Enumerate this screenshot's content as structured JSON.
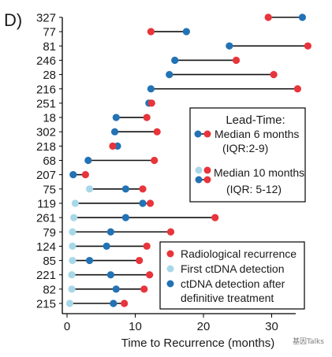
{
  "panel_label": "D)",
  "watermark": "基因Talks",
  "colors": {
    "radiological": "#e8343b",
    "first_ctdna": "#a8d8e8",
    "ctdna_after_treatment": "#2272b5",
    "segment": "#111111"
  },
  "lead_time_legend": {
    "title": "Lead-Time:",
    "line1": "Median 6 months",
    "line2": "(IQR:2-9)",
    "line3": "Median 10 months",
    "line4": "(IQR: 5-12)"
  },
  "chart_data": {
    "type": "dumbbell",
    "xlabel": "Time to Recurrence (months)",
    "ylabel": "",
    "xlim": [
      0,
      36
    ],
    "xticks": [
      0,
      10,
      20,
      30
    ],
    "grid": false,
    "legend_position": "bottom-right",
    "series": [
      {
        "key": "radiological",
        "name": "Radiological recurrence"
      },
      {
        "key": "first",
        "name": "First ctDNA detection"
      },
      {
        "key": "after",
        "name": "ctDNA detection after definitive treatment"
      }
    ],
    "patients": [
      {
        "id": "327",
        "radiological": 29.5,
        "first": null,
        "after": 34.5
      },
      {
        "id": "77",
        "radiological": 12.3,
        "first": null,
        "after": 17.5
      },
      {
        "id": "81",
        "radiological": 35.3,
        "first": null,
        "after": 23.8
      },
      {
        "id": "246",
        "radiological": 24.8,
        "first": null,
        "after": 15.8
      },
      {
        "id": "28",
        "radiological": 30.3,
        "first": null,
        "after": 15.0
      },
      {
        "id": "216",
        "radiological": 33.8,
        "first": null,
        "after": 12.3
      },
      {
        "id": "251",
        "radiological": 12.4,
        "first": null,
        "after": 12.0
      },
      {
        "id": "18",
        "radiological": 11.7,
        "first": null,
        "after": 7.2
      },
      {
        "id": "302",
        "radiological": 13.2,
        "first": null,
        "after": 7.0
      },
      {
        "id": "218",
        "radiological": 6.7,
        "first": null,
        "after": 7.4
      },
      {
        "id": "68",
        "radiological": 12.8,
        "first": null,
        "after": 3.1
      },
      {
        "id": "207",
        "radiological": 2.7,
        "first": null,
        "after": 0.9
      },
      {
        "id": "75",
        "radiological": 11.1,
        "first": 3.3,
        "after": 8.6
      },
      {
        "id": "119",
        "radiological": 12.2,
        "first": 1.2,
        "after": 11.1
      },
      {
        "id": "261",
        "radiological": 21.7,
        "first": 1.0,
        "after": 8.6
      },
      {
        "id": "79",
        "radiological": 15.2,
        "first": 0.8,
        "after": 6.4
      },
      {
        "id": "124",
        "radiological": 11.7,
        "first": 0.8,
        "after": 5.8
      },
      {
        "id": "85",
        "radiological": 10.6,
        "first": 0.8,
        "after": 3.3
      },
      {
        "id": "221",
        "radiological": 12.1,
        "first": 0.7,
        "after": 6.4
      },
      {
        "id": "82",
        "radiological": 11.3,
        "first": 0.7,
        "after": 7.2
      },
      {
        "id": "215",
        "radiological": 8.4,
        "first": 0.4,
        "after": 6.8
      }
    ]
  }
}
